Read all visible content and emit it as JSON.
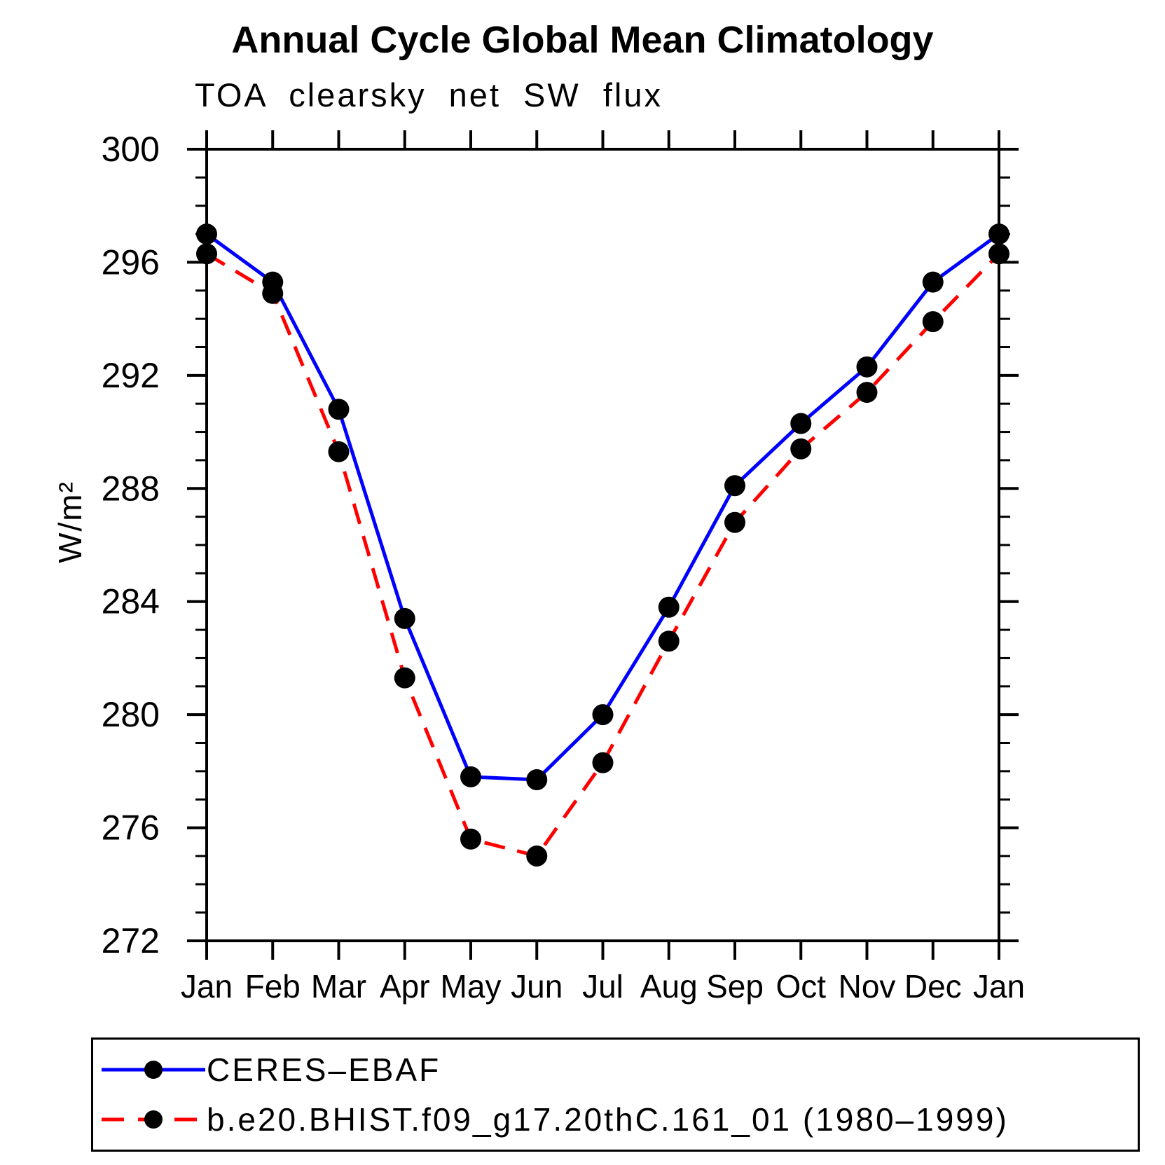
{
  "chart_data": {
    "type": "line",
    "title": "Annual Cycle Global Mean Climatology",
    "subtitle": "TOA clearsky net SW flux",
    "ylabel": "W/m²",
    "xlabel": "",
    "ylim": [
      272,
      300
    ],
    "yticks": [
      272,
      276,
      280,
      284,
      288,
      292,
      296,
      300
    ],
    "ytick_minor_step": 1,
    "grid": false,
    "legend_position": "bottom-box",
    "marker": {
      "shape": "circle",
      "color": "#000000"
    },
    "categories": [
      "Jan",
      "Feb",
      "Mar",
      "Apr",
      "May",
      "Jun",
      "Jul",
      "Aug",
      "Sep",
      "Oct",
      "Nov",
      "Dec",
      "Jan"
    ],
    "series": [
      {
        "name": "CERES–EBAF",
        "color": "#0000ff",
        "line_style": "solid",
        "values": [
          297.0,
          295.3,
          290.8,
          283.4,
          277.8,
          277.7,
          280.0,
          283.8,
          288.1,
          290.3,
          292.3,
          295.3,
          297.0
        ]
      },
      {
        "name": "b.e20.BHIST.f09_g17.20thC.161_01 (1980–1999)",
        "color": "#ff0000",
        "line_style": "dashed",
        "values": [
          296.3,
          294.9,
          289.3,
          281.3,
          275.6,
          275.0,
          278.3,
          282.6,
          286.8,
          289.4,
          291.4,
          293.9,
          296.3
        ]
      }
    ]
  }
}
